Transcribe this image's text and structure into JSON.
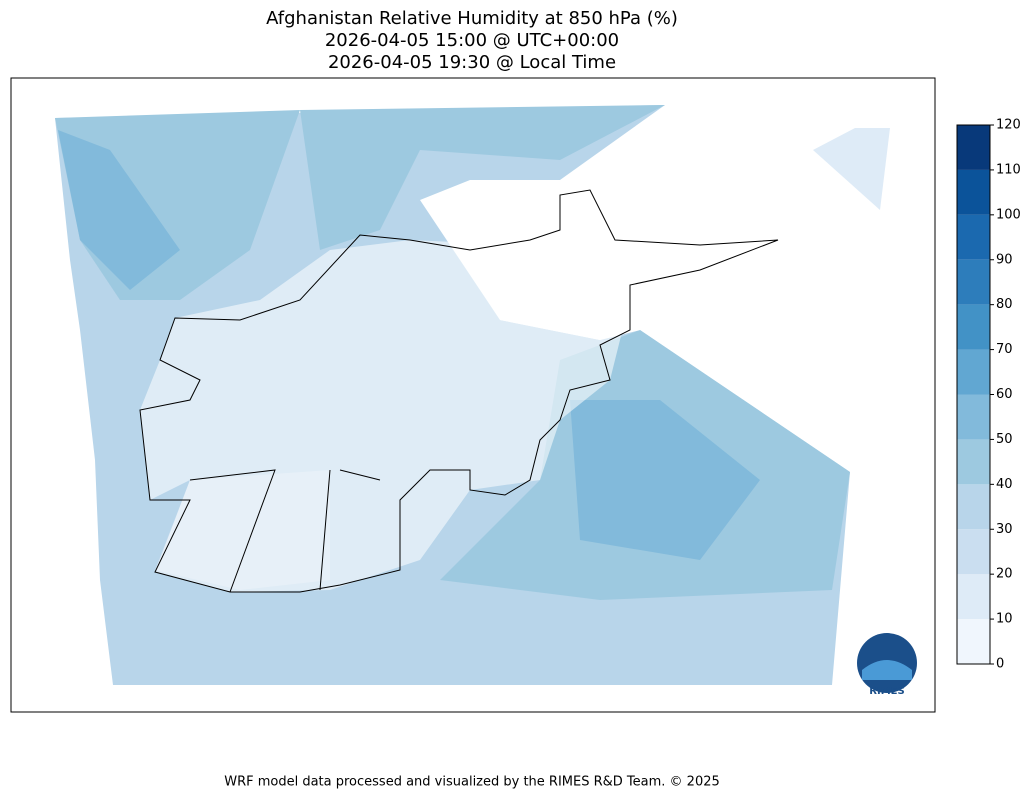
{
  "title": [
    "Afghanistan Relative Humidity at 850 hPa (%)",
    "2026-04-05 15:00 @ UTC+00:00",
    "2026-04-05 19:30 @ Local Time"
  ],
  "colorbar": {
    "range": [
      0,
      120
    ],
    "ticks": [
      0,
      10,
      20,
      30,
      40,
      50,
      60,
      70,
      80,
      90,
      100,
      110,
      120
    ],
    "colors": [
      "#f0f6fd",
      "#deebf7",
      "#cadef0",
      "#b8d5ea",
      "#9dc9e0",
      "#82badb",
      "#61a7d2",
      "#4292c6",
      "#2d7dbb",
      "#1b69af",
      "#0b539a",
      "#08397a"
    ]
  },
  "logo": "RIMES",
  "footer": "WRF model data processed and visualized by the RIMES R&D Team. © 2025"
}
